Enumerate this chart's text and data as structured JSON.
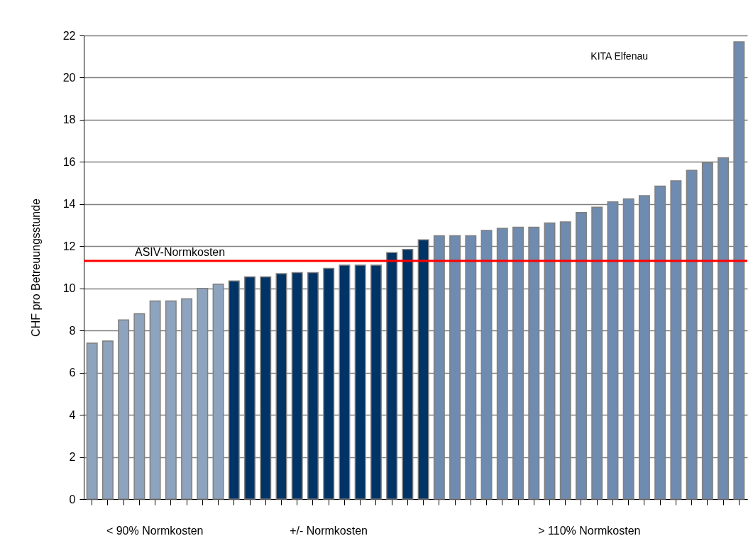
{
  "chart_data": {
    "type": "bar",
    "ylabel": "CHF pro Betreuungsstunde",
    "categories": [
      null,
      null,
      null,
      null,
      null,
      null,
      null,
      null,
      null,
      null,
      null,
      null,
      null,
      null,
      null,
      null,
      null,
      null,
      null,
      null,
      null,
      null,
      null,
      null,
      null,
      null,
      null,
      null,
      null,
      null,
      null,
      null,
      null,
      null,
      null,
      null,
      null,
      null,
      null,
      null,
      null,
      null
    ],
    "series": [
      {
        "color": "#8ea3bd",
        "values": [
          7.4,
          7.5,
          8.5,
          8.8,
          9.4,
          9.4,
          9.5,
          10.0,
          10.2,
          null,
          null,
          null,
          null,
          null,
          null,
          null,
          null,
          null,
          null,
          null,
          null,
          null,
          null,
          null,
          null,
          null,
          null,
          null,
          null,
          null,
          null,
          null,
          null,
          null,
          null,
          null,
          null,
          null,
          null,
          null,
          null,
          null
        ]
      },
      {
        "color": "#003366",
        "values": [
          null,
          null,
          null,
          null,
          null,
          null,
          null,
          null,
          null,
          10.35,
          10.55,
          10.55,
          10.7,
          10.75,
          10.75,
          10.95,
          11.1,
          11.1,
          11.1,
          11.7,
          11.85,
          12.3,
          null,
          null,
          null,
          null,
          null,
          null,
          null,
          null,
          null,
          null,
          null,
          null,
          null,
          null,
          null,
          null,
          null,
          null,
          null,
          null
        ]
      },
      {
        "color": "#6f8bb0",
        "values": [
          null,
          null,
          null,
          null,
          null,
          null,
          null,
          null,
          null,
          null,
          null,
          null,
          null,
          null,
          null,
          null,
          null,
          null,
          null,
          null,
          null,
          null,
          12.5,
          12.5,
          12.5,
          12.75,
          12.85,
          12.9,
          12.9,
          13.1,
          13.15,
          13.6,
          13.85,
          14.1,
          14.25,
          14.4,
          14.85,
          15.1,
          15.6,
          15.95,
          16.2,
          21.7
        ]
      }
    ],
    "ylim": [
      0,
      22
    ],
    "yticks": [
      0,
      2,
      4,
      6,
      8,
      10,
      12,
      14,
      16,
      18,
      20,
      22
    ],
    "grid": "y",
    "tick_labels": "y",
    "ref_lines": [
      {
        "axis": "y",
        "value": 11.3,
        "label": "ASIV-Normkosten",
        "color": "#ff0000"
      }
    ],
    "annotations": [
      "< 90% Normkosten",
      "+/- Normkosten",
      "> 110% Normkosten",
      "KITA Elfenau"
    ]
  }
}
